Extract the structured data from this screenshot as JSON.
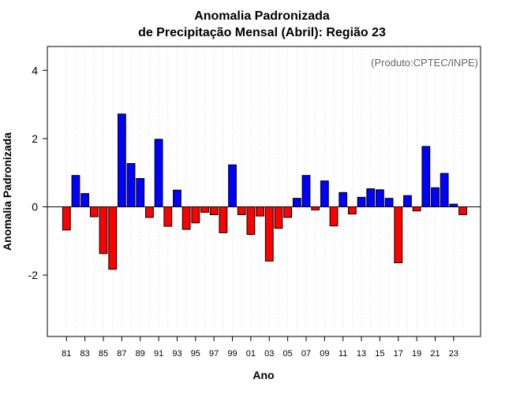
{
  "chart_data": {
    "type": "bar",
    "title": "Anomalia Padronizada",
    "subtitle": "de Precipitação Mensal (Abril): Região 23",
    "xlabel": "Ano",
    "ylabel": "Anomalia Padronizada",
    "annotation": "(Produto:CPTEC/INPE)",
    "ylim": [
      -3.8,
      4.7
    ],
    "yticks": [
      -2,
      0,
      2,
      4
    ],
    "ytick_labels": [
      "-2",
      "0",
      "2",
      "4"
    ],
    "grid": "vertical dotted",
    "categories": [
      "81",
      "82",
      "83",
      "84",
      "85",
      "86",
      "87",
      "88",
      "89",
      "90",
      "91",
      "92",
      "93",
      "94",
      "95",
      "96",
      "97",
      "98",
      "99",
      "00",
      "01",
      "02",
      "03",
      "04",
      "05",
      "06",
      "07",
      "08",
      "09",
      "10",
      "11",
      "12",
      "13",
      "14",
      "15",
      "16",
      "17",
      "18",
      "19",
      "20",
      "21",
      "22",
      "23",
      "24"
    ],
    "xtick_labels": [
      "81",
      "83",
      "85",
      "87",
      "89",
      "91",
      "93",
      "95",
      "97",
      "99",
      "01",
      "03",
      "05",
      "07",
      "09",
      "11",
      "13",
      "15",
      "17",
      "19",
      "21",
      "23"
    ],
    "values": [
      -0.68,
      0.92,
      0.39,
      -0.29,
      -1.37,
      -1.83,
      2.72,
      1.27,
      0.83,
      -0.31,
      1.98,
      -0.57,
      0.49,
      -0.66,
      -0.47,
      -0.16,
      -0.23,
      -0.76,
      1.23,
      -0.23,
      -0.81,
      -0.27,
      -1.59,
      -0.63,
      -0.31,
      0.25,
      0.92,
      -0.09,
      0.76,
      -0.56,
      0.42,
      -0.21,
      0.28,
      0.53,
      0.5,
      0.25,
      -1.64,
      0.33,
      -0.12,
      1.77,
      0.56,
      0.98,
      0.08,
      -0.23
    ],
    "colors": {
      "positive": "#0000ff",
      "negative": "#ff0000"
    }
  }
}
